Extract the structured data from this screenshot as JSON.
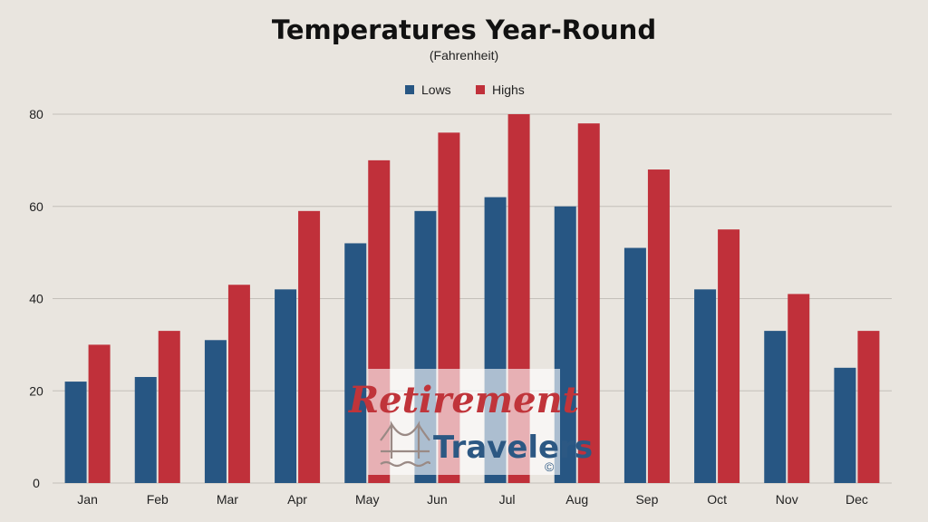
{
  "chart_data": {
    "type": "bar",
    "title": "Temperatures Year-Round",
    "subtitle": "(Fahrenheit)",
    "categories": [
      "Jan",
      "Feb",
      "Mar",
      "Apr",
      "May",
      "Jun",
      "Jul",
      "Aug",
      "Sep",
      "Oct",
      "Nov",
      "Dec"
    ],
    "series": [
      {
        "name": "Lows",
        "color": "#275683",
        "values": [
          22,
          23,
          31,
          42,
          52,
          59,
          62,
          60,
          51,
          42,
          33,
          25
        ]
      },
      {
        "name": "Highs",
        "color": "#c0303a",
        "values": [
          30,
          33,
          43,
          59,
          70,
          76,
          80,
          78,
          68,
          55,
          41,
          33
        ]
      }
    ],
    "ylim": [
      0,
      80
    ],
    "yticks": [
      0,
      20,
      40,
      60,
      80
    ],
    "grid": true,
    "legend": "top-center",
    "xlabel": "",
    "ylabel": ""
  },
  "watermark": {
    "line1": "Retirement",
    "line2": "Travelers",
    "mark": "©",
    "icon": "bridge-icon"
  }
}
